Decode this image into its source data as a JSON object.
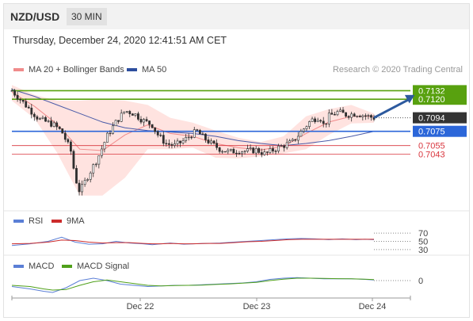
{
  "header": {
    "pair": "NZD/USD",
    "timeframe": "30 MIN",
    "timestamp": "Thursday, December 24, 2020 12:41:51 AM CET"
  },
  "legend": {
    "bollinger": "MA 20 + Bollinger Bands",
    "ma50": "MA 50",
    "copyright": "Research © 2020 Trading Central",
    "rsi": "RSI",
    "rsi_ma": "9MA",
    "macd": "MACD",
    "macd_signal": "MACD Signal"
  },
  "colors": {
    "green": "#58a10f",
    "blue": "#2b66d9",
    "red": "#d9363e",
    "dark": "#333333",
    "candle": "#2e2e2e",
    "band_fill": "#ffd9d6",
    "ma20": "#f08b8b",
    "ma50": "#4a5ba8",
    "arrow": "#2d5a9e",
    "rsi_blue": "#5b7fd6",
    "rsi_red": "#cc2b2b",
    "macd_blue": "#5b7fd6",
    "macd_green": "#4fa01a"
  },
  "chart_data": [
    {
      "type": "line",
      "title": "NZD/USD 30 MIN",
      "subtype": "candlestick",
      "x_tick_labels": [
        "Dec 22",
        "Dec 23",
        "Dec 24"
      ],
      "ylim": [
        0.6968,
        0.7148
      ],
      "levels": [
        {
          "value": 0.7132,
          "label": "0.7132",
          "role": "resistance-target",
          "color": "green"
        },
        {
          "value": 0.712,
          "label": "0.7120",
          "role": "resistance-target",
          "color": "green"
        },
        {
          "value": 0.7094,
          "label": "0.7094",
          "role": "last-price",
          "color": "dark"
        },
        {
          "value": 0.7075,
          "label": "0.7075",
          "role": "pivot",
          "color": "blue"
        },
        {
          "value": 0.7055,
          "label": "0.7055",
          "role": "support",
          "color": "red"
        },
        {
          "value": 0.7043,
          "label": "0.7043",
          "role": "support",
          "color": "red"
        }
      ],
      "close_path": [
        [
          0,
          0.7132
        ],
        [
          6,
          0.7112
        ],
        [
          12,
          0.7092
        ],
        [
          18,
          0.7085
        ],
        [
          22,
          0.7075
        ],
        [
          26,
          0.7048
        ],
        [
          28,
          0.701
        ],
        [
          30,
          0.699
        ],
        [
          34,
          0.7015
        ],
        [
          38,
          0.7038
        ],
        [
          42,
          0.7068
        ],
        [
          46,
          0.7088
        ],
        [
          50,
          0.7104
        ],
        [
          54,
          0.71
        ],
        [
          58,
          0.709
        ],
        [
          62,
          0.7084
        ],
        [
          64,
          0.7072
        ],
        [
          68,
          0.7058
        ],
        [
          72,
          0.7055
        ],
        [
          76,
          0.7062
        ],
        [
          80,
          0.7072
        ],
        [
          82,
          0.7075
        ],
        [
          84,
          0.7068
        ],
        [
          88,
          0.7058
        ],
        [
          92,
          0.705
        ],
        [
          96,
          0.7046
        ],
        [
          100,
          0.7048
        ],
        [
          104,
          0.7047
        ],
        [
          108,
          0.7049
        ],
        [
          112,
          0.7043
        ],
        [
          116,
          0.705
        ],
        [
          120,
          0.7055
        ],
        [
          124,
          0.706
        ],
        [
          128,
          0.7075
        ],
        [
          132,
          0.709
        ],
        [
          136,
          0.7096
        ],
        [
          138,
          0.7082
        ],
        [
          140,
          0.7096
        ],
        [
          144,
          0.7102
        ],
        [
          148,
          0.7098
        ],
        [
          152,
          0.71
        ],
        [
          156,
          0.7097
        ],
        [
          160,
          0.7094
        ]
      ],
      "bollinger": {
        "upper": [
          [
            0,
            0.714
          ],
          [
            10,
            0.7126
          ],
          [
            20,
            0.7118
          ],
          [
            30,
            0.7118
          ],
          [
            40,
            0.712
          ],
          [
            50,
            0.7118
          ],
          [
            60,
            0.7112
          ],
          [
            70,
            0.7094
          ],
          [
            80,
            0.7087
          ],
          [
            90,
            0.7076
          ],
          [
            100,
            0.7066
          ],
          [
            110,
            0.706
          ],
          [
            120,
            0.7068
          ],
          [
            130,
            0.7096
          ],
          [
            140,
            0.7106
          ],
          [
            150,
            0.7112
          ],
          [
            160,
            0.71
          ]
        ],
        "lower": [
          [
            0,
            0.7118
          ],
          [
            10,
            0.7093
          ],
          [
            20,
            0.7045
          ],
          [
            30,
            0.6985
          ],
          [
            40,
            0.6985
          ],
          [
            50,
            0.701
          ],
          [
            60,
            0.705
          ],
          [
            70,
            0.705
          ],
          [
            80,
            0.7052
          ],
          [
            90,
            0.7038
          ],
          [
            100,
            0.7037
          ],
          [
            110,
            0.704
          ],
          [
            120,
            0.7044
          ],
          [
            130,
            0.705
          ],
          [
            140,
            0.707
          ],
          [
            150,
            0.7086
          ],
          [
            160,
            0.7087
          ]
        ],
        "ma20": [
          [
            0,
            0.713
          ],
          [
            10,
            0.711
          ],
          [
            20,
            0.7085
          ],
          [
            30,
            0.705
          ],
          [
            40,
            0.7048
          ],
          [
            50,
            0.707
          ],
          [
            60,
            0.7084
          ],
          [
            70,
            0.7072
          ],
          [
            80,
            0.7068
          ],
          [
            90,
            0.7058
          ],
          [
            100,
            0.7052
          ],
          [
            110,
            0.7049
          ],
          [
            120,
            0.7054
          ],
          [
            130,
            0.7072
          ],
          [
            140,
            0.7088
          ],
          [
            150,
            0.7096
          ],
          [
            160,
            0.7096
          ]
        ]
      },
      "ma50": [
        [
          0,
          0.7134
        ],
        [
          10,
          0.7124
        ],
        [
          20,
          0.7112
        ],
        [
          30,
          0.71
        ],
        [
          40,
          0.7088
        ],
        [
          50,
          0.708
        ],
        [
          60,
          0.7076
        ],
        [
          70,
          0.7074
        ],
        [
          80,
          0.7072
        ],
        [
          90,
          0.7068
        ],
        [
          100,
          0.7062
        ],
        [
          110,
          0.7058
        ],
        [
          120,
          0.7055
        ],
        [
          130,
          0.7058
        ],
        [
          140,
          0.7062
        ],
        [
          150,
          0.7068
        ],
        [
          160,
          0.7075
        ]
      ],
      "projection": {
        "from": [
          160,
          0.7094
        ],
        "to": [
          178,
          0.7126
        ]
      }
    },
    {
      "type": "line",
      "title": "RSI",
      "ylim": [
        24,
        76
      ],
      "y_ticks": [
        70,
        50,
        30
      ],
      "series": [
        {
          "name": "RSI",
          "values": [
            [
              0,
              40
            ],
            [
              8,
              44
            ],
            [
              16,
              50
            ],
            [
              22,
              60
            ],
            [
              28,
              48
            ],
            [
              34,
              43
            ],
            [
              40,
              44
            ],
            [
              46,
              50
            ],
            [
              52,
              46
            ],
            [
              58,
              44
            ],
            [
              62,
              42
            ],
            [
              66,
              44
            ],
            [
              70,
              46
            ],
            [
              76,
              43
            ],
            [
              80,
              44
            ],
            [
              86,
              45
            ],
            [
              92,
              46
            ],
            [
              98,
              48
            ],
            [
              104,
              50
            ],
            [
              110,
              52
            ],
            [
              116,
              54
            ],
            [
              122,
              56
            ],
            [
              128,
              57
            ],
            [
              134,
              56
            ],
            [
              140,
              54
            ],
            [
              146,
              56
            ],
            [
              152,
              54
            ],
            [
              156,
              55
            ],
            [
              160,
              54
            ]
          ]
        },
        {
          "name": "9MA",
          "values": [
            [
              0,
              44
            ],
            [
              8,
              45
            ],
            [
              16,
              48
            ],
            [
              22,
              53
            ],
            [
              28,
              52
            ],
            [
              34,
              48
            ],
            [
              40,
              46
            ],
            [
              46,
              47
            ],
            [
              52,
              47
            ],
            [
              58,
              45
            ],
            [
              62,
              44
            ],
            [
              66,
              44
            ],
            [
              70,
              45
            ],
            [
              76,
              44
            ],
            [
              80,
              44
            ],
            [
              86,
              45
            ],
            [
              92,
              45
            ],
            [
              98,
              47
            ],
            [
              104,
              49
            ],
            [
              110,
              50
            ],
            [
              116,
              52
            ],
            [
              122,
              54
            ],
            [
              128,
              55
            ],
            [
              134,
              55
            ],
            [
              140,
              55
            ],
            [
              146,
              55
            ],
            [
              152,
              55
            ],
            [
              156,
              55
            ],
            [
              160,
              55
            ]
          ]
        }
      ]
    },
    {
      "type": "line",
      "title": "MACD",
      "ylim": [
        -12,
        8
      ],
      "y_ticks": [
        0
      ],
      "series": [
        {
          "name": "MACD",
          "values": [
            [
              0,
              -5
            ],
            [
              8,
              -7
            ],
            [
              14,
              -9
            ],
            [
              18,
              -10
            ],
            [
              24,
              -6
            ],
            [
              30,
              0
            ],
            [
              36,
              2
            ],
            [
              42,
              0
            ],
            [
              48,
              -3
            ],
            [
              54,
              -4
            ],
            [
              60,
              -5
            ],
            [
              66,
              -4.5
            ],
            [
              72,
              -4
            ],
            [
              78,
              -4
            ],
            [
              84,
              -3.5
            ],
            [
              90,
              -3
            ],
            [
              96,
              -2.5
            ],
            [
              102,
              -2
            ],
            [
              108,
              -1
            ],
            [
              114,
              1
            ],
            [
              120,
              2
            ],
            [
              126,
              2.5
            ],
            [
              132,
              2
            ],
            [
              138,
              1.5
            ],
            [
              144,
              1.5
            ],
            [
              150,
              1.5
            ],
            [
              156,
              1
            ],
            [
              160,
              0.5
            ]
          ]
        },
        {
          "name": "MACD Signal",
          "values": [
            [
              0,
              -4
            ],
            [
              8,
              -5
            ],
            [
              14,
              -7
            ],
            [
              18,
              -8
            ],
            [
              24,
              -7.5
            ],
            [
              30,
              -4
            ],
            [
              36,
              -1
            ],
            [
              42,
              0.5
            ],
            [
              48,
              -1
            ],
            [
              54,
              -2.5
            ],
            [
              60,
              -4
            ],
            [
              66,
              -4.5
            ],
            [
              72,
              -4.2
            ],
            [
              78,
              -4
            ],
            [
              84,
              -3.8
            ],
            [
              90,
              -3.3
            ],
            [
              96,
              -2.8
            ],
            [
              102,
              -2.2
            ],
            [
              108,
              -1.5
            ],
            [
              114,
              0
            ],
            [
              120,
              1.2
            ],
            [
              126,
              2
            ],
            [
              132,
              2
            ],
            [
              138,
              1.8
            ],
            [
              144,
              1.6
            ],
            [
              150,
              1.5
            ],
            [
              156,
              1.2
            ],
            [
              160,
              0.8
            ]
          ]
        }
      ]
    }
  ]
}
